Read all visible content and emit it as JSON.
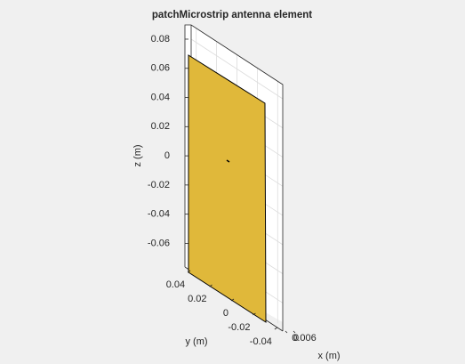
{
  "chart_data": {
    "type": "patch3d",
    "title": "patchMicrostrip antenna element",
    "xlabel": "x (m)",
    "ylabel": "y (m)",
    "zlabel": "z (m)",
    "xlim": [
      0,
      0.006
    ],
    "xticks": [
      0,
      0.006
    ],
    "ylim": [
      -0.045,
      0.045
    ],
    "yticks": [
      0.04,
      0.02,
      0,
      -0.02,
      -0.04
    ],
    "zlim": [
      -0.075,
      0.09
    ],
    "zticks": [
      0.08,
      0.06,
      0.04,
      0.02,
      0,
      -0.02,
      -0.04,
      -0.06
    ],
    "color": "#e0b83a",
    "grid": true
  }
}
